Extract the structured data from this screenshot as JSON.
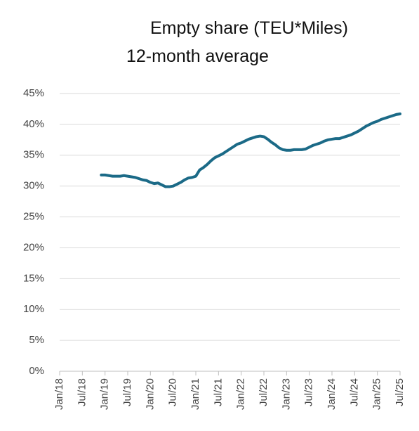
{
  "chart_data": {
    "type": "line",
    "title": "Empty share (TEU*Miles)",
    "subtitle": "12-month average",
    "categories": [
      "Jan/18",
      null,
      null,
      null,
      null,
      null,
      "Jul/18",
      null,
      null,
      null,
      null,
      null,
      "Jan/19",
      null,
      null,
      null,
      null,
      null,
      "Jul/19",
      null,
      null,
      null,
      null,
      null,
      "Jan/20",
      null,
      null,
      null,
      null,
      null,
      "Jul/20",
      null,
      null,
      null,
      null,
      null,
      "Jan/21",
      null,
      null,
      null,
      null,
      null,
      "Jul/21",
      null,
      null,
      null,
      null,
      null,
      "Jan/22",
      null,
      null,
      null,
      null,
      null,
      "Jul/22",
      null,
      null,
      null,
      null,
      null,
      "Jan/23",
      null,
      null,
      null,
      null,
      null,
      "Jul/23",
      null,
      null,
      null,
      null,
      null,
      "Jan/24",
      null,
      null,
      null,
      null,
      null,
      "Jul/24",
      null,
      null,
      null,
      null,
      null,
      "Jan/25",
      null,
      null,
      null,
      null,
      null,
      "Jul/25"
    ],
    "series": [
      {
        "color": "#1b6a87",
        "values": [
          null,
          null,
          null,
          null,
          null,
          null,
          null,
          null,
          null,
          null,
          null,
          31.8,
          31.8,
          31.7,
          31.6,
          31.6,
          31.6,
          31.7,
          31.6,
          31.5,
          31.4,
          31.2,
          31.0,
          30.9,
          30.6,
          30.4,
          30.5,
          30.2,
          29.9,
          29.9,
          30.0,
          30.3,
          30.6,
          31.0,
          31.3,
          31.4,
          31.6,
          32.6,
          33.0,
          33.5,
          34.1,
          34.6,
          34.9,
          35.2,
          35.6,
          36.0,
          36.4,
          36.8,
          37.0,
          37.3,
          37.6,
          37.8,
          38.0,
          38.1,
          38.0,
          37.6,
          37.1,
          36.7,
          36.2,
          35.9,
          35.8,
          35.8,
          35.9,
          35.9,
          35.9,
          36.0,
          36.3,
          36.6,
          36.8,
          37.0,
          37.3,
          37.5,
          37.6,
          37.7,
          37.7,
          37.9,
          38.1,
          38.3,
          38.6,
          38.9,
          39.3,
          39.7,
          40.0,
          40.3,
          40.5,
          40.8,
          41.0,
          41.2,
          41.4,
          41.6,
          41.7
        ]
      }
    ],
    "ylim": [
      0,
      45
    ],
    "yticks": [
      {
        "value": 0,
        "label": "0%"
      },
      {
        "value": 5,
        "label": "5%"
      },
      {
        "value": 10,
        "label": "10%"
      },
      {
        "value": 15,
        "label": "15%"
      },
      {
        "value": 20,
        "label": "20%"
      },
      {
        "value": 25,
        "label": "25%"
      },
      {
        "value": 30,
        "label": "30%"
      },
      {
        "value": 35,
        "label": "35%"
      },
      {
        "value": 40,
        "label": "40%"
      },
      {
        "value": 45,
        "label": "45%"
      }
    ],
    "grid": true
  }
}
